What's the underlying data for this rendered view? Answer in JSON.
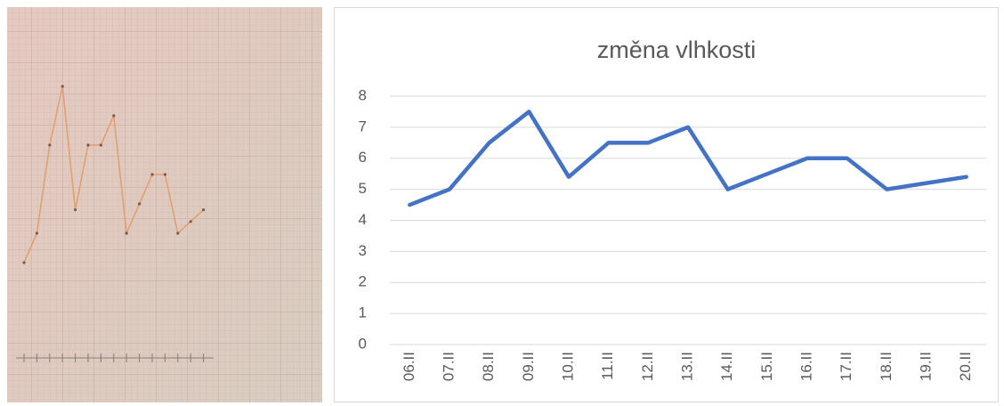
{
  "chart_data": {
    "type": "line",
    "title": "změna vlhkosti",
    "categories": [
      "06.II",
      "07.II",
      "08.II",
      "09.II",
      "10.II",
      "11.II",
      "12.II",
      "13.II",
      "14.II",
      "15.II",
      "16.II",
      "17.II",
      "18.II",
      "19.II",
      "20.II"
    ],
    "values": [
      4.5,
      5,
      6.5,
      7.5,
      5.4,
      6.5,
      6.5,
      7,
      5,
      5.5,
      6,
      6,
      5,
      5.2,
      5.4
    ],
    "color": "#4472c4",
    "ylim": [
      0,
      8
    ],
    "yticks": [
      0,
      1,
      2,
      3,
      4,
      5,
      6,
      7,
      8
    ],
    "grid": true
  }
}
